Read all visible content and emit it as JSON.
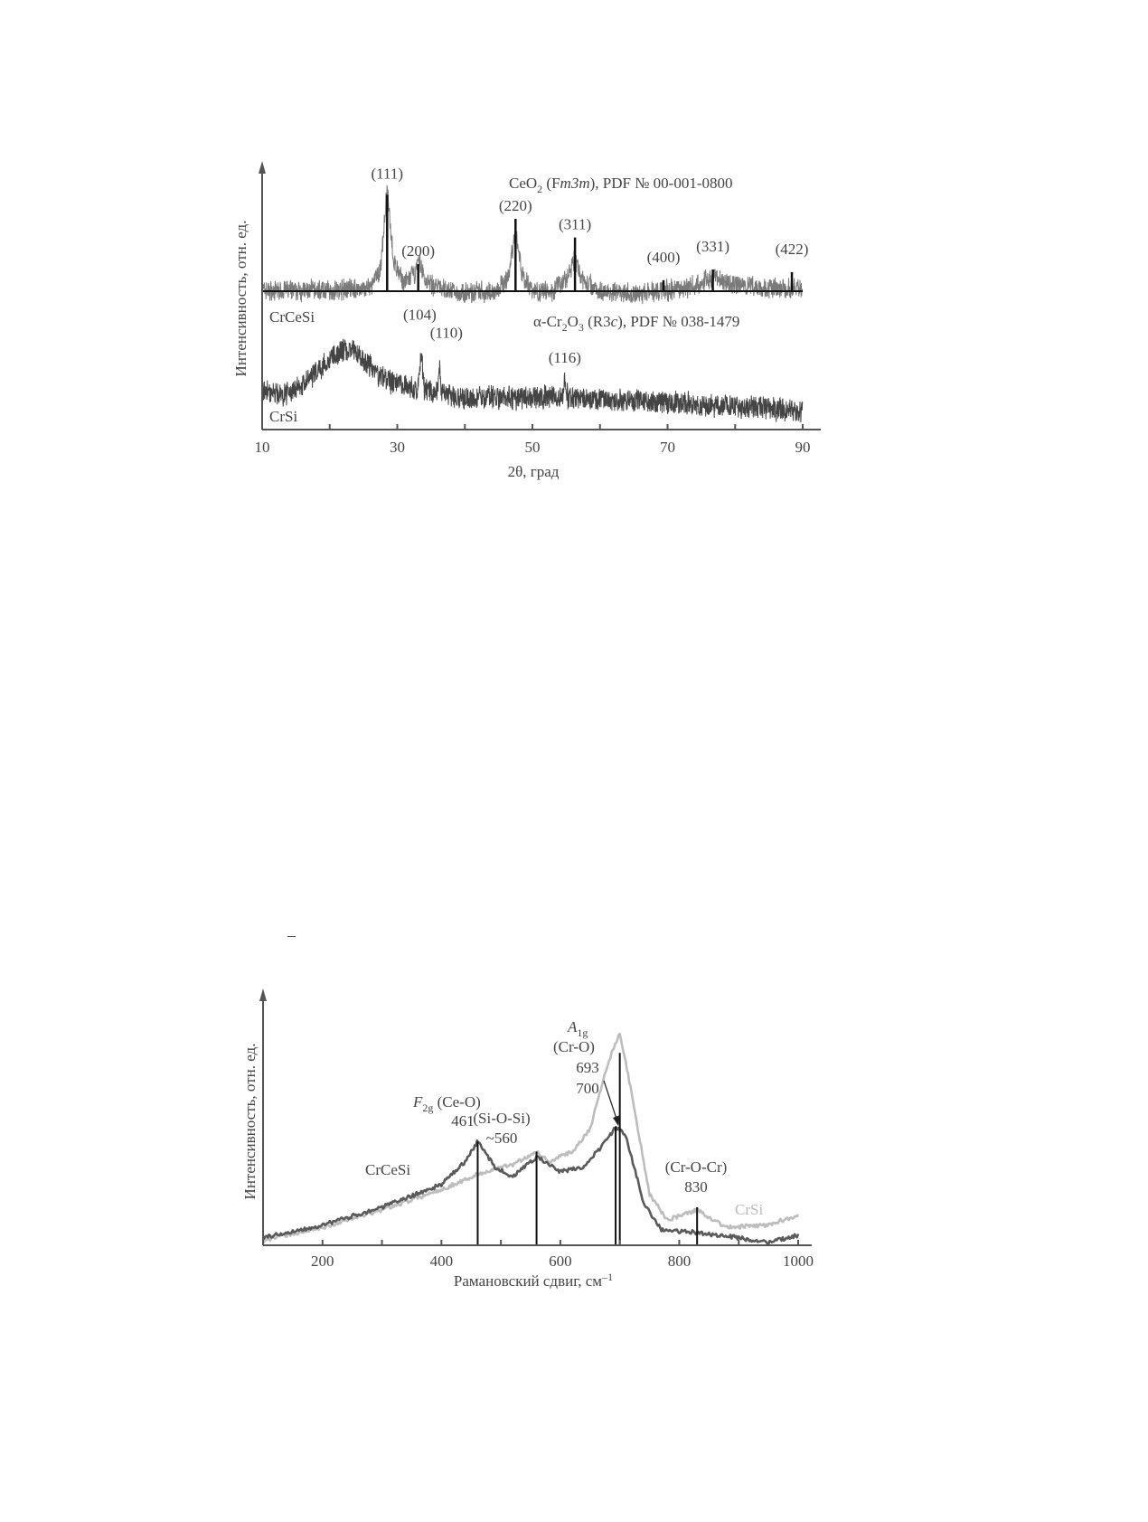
{
  "stray_mark": "–",
  "chart_data": [
    {
      "type": "line",
      "xlabel": "2θ, град",
      "ylabel": "Интенсивность, отн. ед.",
      "xlim": [
        10,
        90
      ],
      "ylim": [
        0,
        100
      ],
      "xticks": [
        10,
        30,
        50,
        70,
        90
      ],
      "minor_xticks": [
        20,
        40,
        60,
        80
      ],
      "grid": false,
      "series": [
        {
          "name": "CrCeSi",
          "color": "#7a7a7a",
          "x": [
            10,
            20,
            26,
            27.5,
            28.5,
            29.5,
            31,
            32.5,
            33.3,
            34,
            36,
            40,
            45,
            46.5,
            47.5,
            48.5,
            50,
            53,
            55,
            56.3,
            57.5,
            60,
            65,
            70,
            74,
            77,
            80,
            85,
            90
          ],
          "y": [
            52,
            52,
            53,
            60,
            90,
            62,
            55,
            58,
            63,
            56,
            53,
            51,
            52,
            58,
            75,
            58,
            52,
            52,
            56,
            64,
            56,
            52,
            51,
            52,
            54,
            57,
            54,
            53,
            53
          ]
        },
        {
          "name": "CrSi",
          "color": "#444444",
          "x": [
            10,
            13,
            16,
            19,
            22,
            24,
            26,
            28,
            30,
            33,
            33.6,
            34,
            36,
            36.2,
            36.5,
            40,
            45,
            50,
            54.5,
            54.8,
            55.2,
            60,
            65,
            70,
            80,
            90
          ],
          "y": [
            15,
            13,
            17,
            24,
            30,
            29,
            24,
            19,
            17,
            15,
            29,
            15,
            14,
            27,
            14,
            12,
            12,
            12,
            12,
            20,
            12,
            11,
            11,
            10,
            9,
            7
          ]
        }
      ],
      "annotations": {
        "ceo2_ref": "CeO₂ (Fm3m), PDF № 00-001-0800",
        "ceo2_ref_parts": [
          "CeO",
          "2",
          " (F",
          "m3m",
          "), PDF № 00-001-0800"
        ],
        "cr2o3_ref_parts": [
          "α-Cr",
          "2",
          "O",
          "3",
          " (R3",
          "c",
          "), PDF № 038-1479"
        ],
        "sample_labels": [
          "CrCeSi",
          "CrSi"
        ],
        "ceo2_sticks": [
          {
            "x": 28.5,
            "h": 88,
            "label": "(111)"
          },
          {
            "x": 33.1,
            "h": 62,
            "label": "(200)"
          },
          {
            "x": 47.5,
            "h": 79,
            "label": "(220)"
          },
          {
            "x": 56.3,
            "h": 72,
            "label": "(311)"
          },
          {
            "x": 69.4,
            "h": 56,
            "label": "(400)"
          },
          {
            "x": 76.7,
            "h": 60,
            "label": "(331)"
          },
          {
            "x": 88.4,
            "h": 59,
            "label": "(422)"
          }
        ],
        "stick_base": 52,
        "cr2o3_peaks": [
          {
            "x": 33.6,
            "label": "(104)"
          },
          {
            "x": 36.2,
            "label": "(110)"
          },
          {
            "x": 54.8,
            "label": "(116)"
          }
        ]
      }
    },
    {
      "type": "line",
      "xlabel": "Рамановский сдвиг, см⁻¹",
      "xlabel_parts": [
        "Рамановский сдвиг, см",
        "–1"
      ],
      "ylabel": "Интенсивность, отн. ед.",
      "xlim": [
        100,
        1010
      ],
      "ylim": [
        0,
        100
      ],
      "xticks": [
        200,
        400,
        600,
        800,
        1000
      ],
      "minor_xticks": [
        300,
        500,
        700,
        900
      ],
      "grid": false,
      "series": [
        {
          "name": "CrCeSi",
          "color": "#5a5a5a",
          "x": [
            100,
            200,
            300,
            400,
            440,
            461,
            490,
            520,
            560,
            600,
            640,
            680,
            693,
            710,
            740,
            770,
            830,
            900,
            950,
            1000
          ],
          "y": [
            3,
            8,
            15,
            24,
            33,
            41,
            31,
            27,
            35,
            29,
            31,
            42,
            47,
            43,
            17,
            6,
            5,
            3,
            1,
            4
          ]
        },
        {
          "name": "CrSi",
          "color": "#bdbdbd",
          "x": [
            100,
            200,
            300,
            400,
            461,
            520,
            560,
            580,
            620,
            650,
            680,
            700,
            720,
            750,
            780,
            830,
            880,
            950,
            1000
          ],
          "y": [
            2,
            7,
            14,
            22,
            28,
            32,
            37,
            33,
            37,
            46,
            72,
            84,
            60,
            20,
            10,
            14,
            7,
            8,
            12
          ]
        }
      ],
      "ref_lines": [
        {
          "x": 461,
          "h": 41
        },
        {
          "x": 560,
          "h": 37
        },
        {
          "x": 693,
          "h": 47
        },
        {
          "x": 700,
          "h": 76
        },
        {
          "x": 830,
          "h": 15
        }
      ],
      "annotations": {
        "f2g_sym": "F",
        "f2g_sub": "2g",
        "f2g_bond": " (Ce-O)",
        "f2g_val": "461",
        "sio_bond": "(Si-O-Si)",
        "sio_val": "~560",
        "a1g_sym": "A",
        "a1g_sub": "1g",
        "a1g_bond": "(Cr-O)",
        "a1g_val1": "693",
        "a1g_val2": "700",
        "croc_bond": "(Cr-O-Cr)",
        "croc_val": "830",
        "sample_labels": [
          "CrCeSi",
          "CrSi"
        ]
      }
    }
  ]
}
